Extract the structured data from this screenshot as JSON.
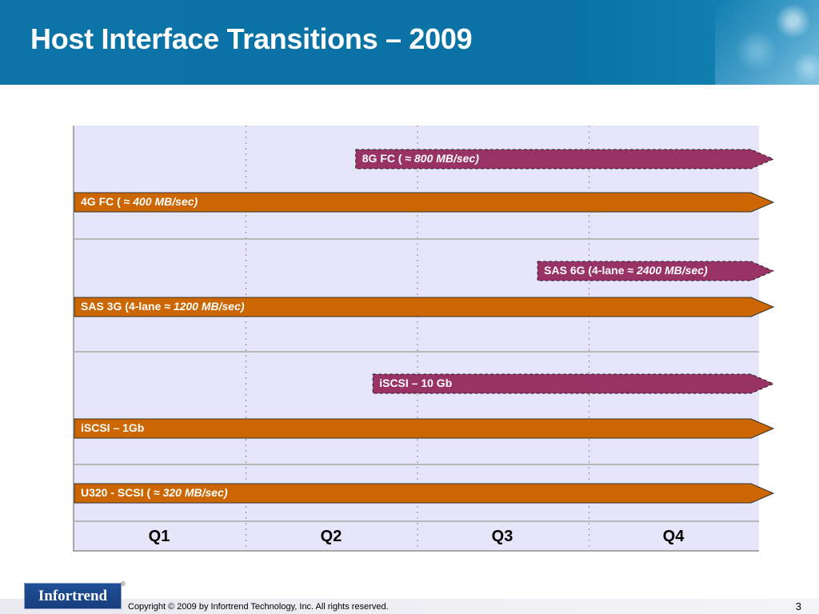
{
  "slide": {
    "title": "Host Interface Transitions – 2009",
    "page_number": "3",
    "copyright": "Copyright © 2009 by Infortrend Technology, Inc. All rights reserved.",
    "logo_text": "Infortrend",
    "logo_mark": "®"
  },
  "colors": {
    "header_blue": "#0b73a5",
    "chart_background": "#e6e6fb",
    "current_bar": "#cc6600",
    "future_bar": "#993366",
    "grid": "#a7a7a7"
  },
  "timeline": {
    "quarters": [
      "Q1",
      "Q2",
      "Q3",
      "Q4"
    ],
    "bars": [
      {
        "name": "8G FC",
        "label": "8G FC ( ≈ ",
        "rate": "800 MB/sec)",
        "start_quarter": 1.64,
        "end_quarter": 4.0,
        "status": "future"
      },
      {
        "name": "4G FC",
        "label": "4G FC ( ≈ ",
        "rate": "400 MB/sec)",
        "start_quarter": 0.0,
        "end_quarter": 4.0,
        "status": "current"
      },
      {
        "name": "SAS 6G",
        "label": "SAS 6G (4-lane ≈ ",
        "rate": "2400 MB/sec)",
        "start_quarter": 2.7,
        "end_quarter": 4.0,
        "status": "future"
      },
      {
        "name": "SAS 3G",
        "label": "SAS 3G (4-lane ≈ ",
        "rate": "1200 MB/sec)",
        "start_quarter": 0.0,
        "end_quarter": 4.0,
        "status": "current"
      },
      {
        "name": "iSCSI 10 Gb",
        "label": "iSCSI – 10 Gb",
        "rate": "",
        "start_quarter": 1.74,
        "end_quarter": 4.0,
        "status": "future"
      },
      {
        "name": "iSCSI 1Gb",
        "label": "iSCSI – 1Gb",
        "rate": "",
        "start_quarter": 0.0,
        "end_quarter": 4.0,
        "status": "current"
      },
      {
        "name": "U320 SCSI",
        "label": "U320 - SCSI ( ≈ ",
        "rate": "320 MB/sec)",
        "start_quarter": 0.0,
        "end_quarter": 4.0,
        "status": "current"
      }
    ]
  }
}
